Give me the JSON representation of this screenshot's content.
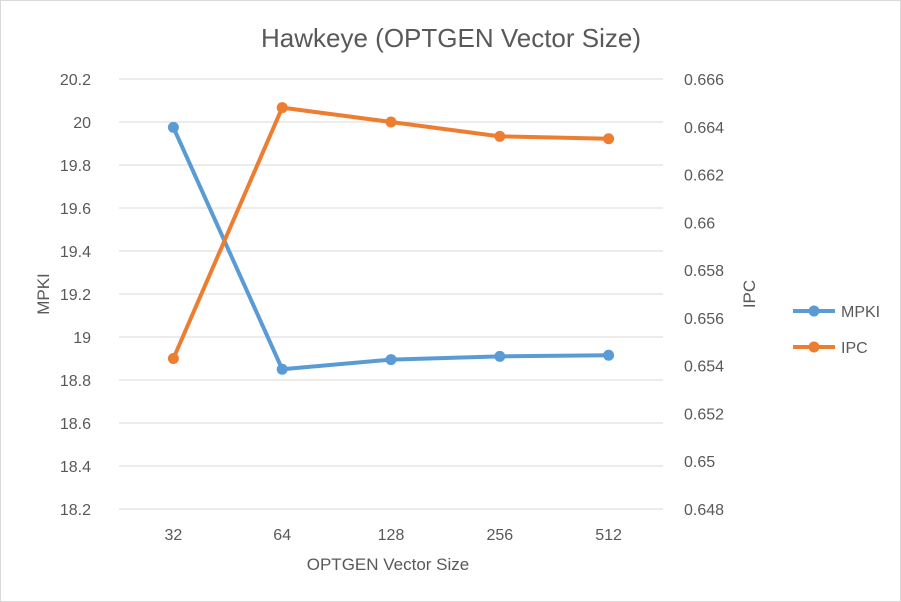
{
  "chart_data": {
    "type": "line",
    "title": "Hawkeye (OPTGEN Vector Size)",
    "xlabel": "OPTGEN Vector Size",
    "ylabel": "MPKI",
    "y2label": "IPC",
    "categories": [
      "32",
      "64",
      "128",
      "256",
      "512"
    ],
    "ylim": [
      18.2,
      20.2
    ],
    "y_ticks": [
      "18.2",
      "18.4",
      "18.6",
      "18.8",
      "19",
      "19.2",
      "19.4",
      "19.6",
      "19.8",
      "20",
      "20.2"
    ],
    "y2lim": [
      0.648,
      0.666
    ],
    "y2_ticks": [
      "0.648",
      "0.65",
      "0.652",
      "0.654",
      "0.656",
      "0.658",
      "0.66",
      "0.662",
      "0.664",
      "0.666"
    ],
    "grid": true,
    "legend_position": "right",
    "series": [
      {
        "name": "MPKI",
        "axis": "left",
        "color": "#5b9bd5",
        "values": [
          19.975,
          18.85,
          18.895,
          18.91,
          18.915
        ]
      },
      {
        "name": "IPC",
        "axis": "right",
        "color": "#ed7d31",
        "values": [
          0.6543,
          0.6648,
          0.6642,
          0.6636,
          0.6635
        ]
      }
    ]
  }
}
